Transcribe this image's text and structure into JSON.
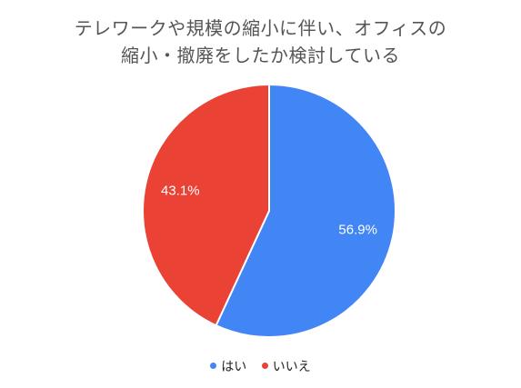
{
  "chart_data": {
    "type": "pie",
    "title_lines": [
      "テレワークや規模の縮小に伴い、オフィスの",
      "縮小・撤廃をしたか検討している"
    ],
    "categories": [
      "はい",
      "いいえ"
    ],
    "values": [
      56.9,
      43.1
    ],
    "value_labels": [
      "56.9%",
      "43.1%"
    ],
    "colors": [
      "#4285F4",
      "#EA4335"
    ],
    "start": "12 o'clock",
    "direction": "clockwise",
    "legend_position": "bottom",
    "data_label_color": "#ffffff"
  }
}
